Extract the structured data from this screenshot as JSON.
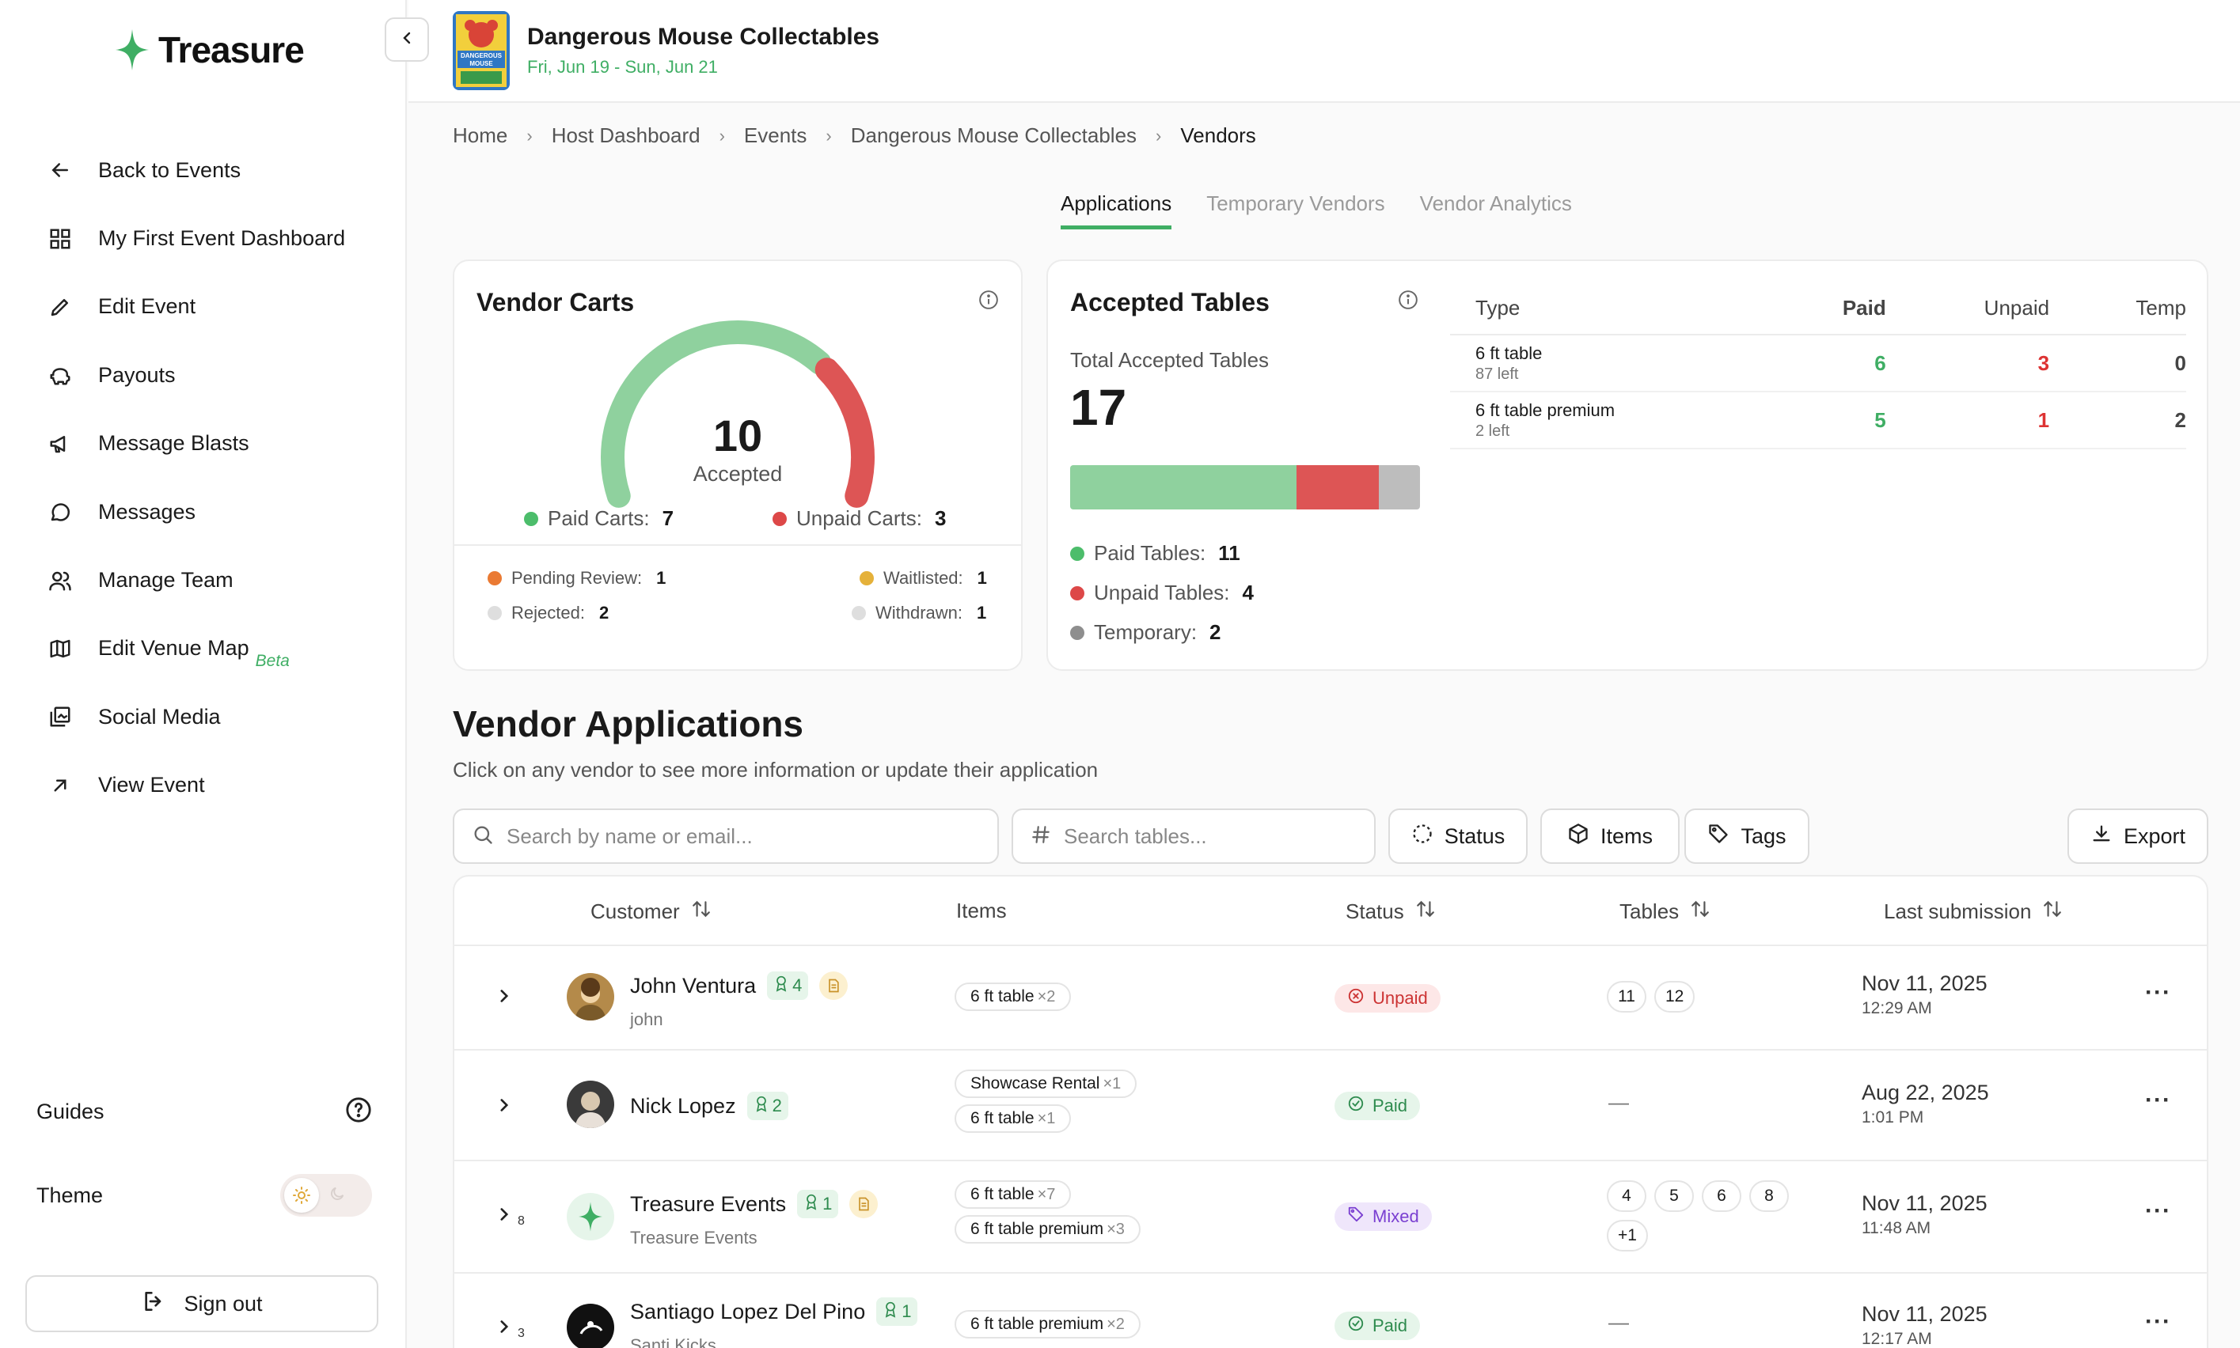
{
  "brand": {
    "name": "Treasure"
  },
  "sidebar": {
    "items": [
      {
        "label": "Back to Events",
        "icon": "arrow-left-icon"
      },
      {
        "label": "My First Event Dashboard",
        "icon": "grid-icon"
      },
      {
        "label": "Edit Event",
        "icon": "pencil-icon"
      },
      {
        "label": "Payouts",
        "icon": "piggy-bank-icon"
      },
      {
        "label": "Message Blasts",
        "icon": "megaphone-icon"
      },
      {
        "label": "Messages",
        "icon": "chat-bubble-icon"
      },
      {
        "label": "Manage Team",
        "icon": "users-icon"
      },
      {
        "label": "Edit Venue Map",
        "icon": "map-icon",
        "badge": "Beta"
      },
      {
        "label": "Social Media",
        "icon": "images-icon"
      },
      {
        "label": "View Event",
        "icon": "arrow-up-right-icon"
      }
    ],
    "guides": "Guides",
    "theme": "Theme",
    "sign_out": "Sign out"
  },
  "event": {
    "title": "Dangerous Mouse Collectables",
    "date": "Fri, Jun 19 - Sun, Jun 21",
    "poster_text": "DANGEROUS MOUSE"
  },
  "breadcrumb": [
    "Home",
    "Host Dashboard",
    "Events",
    "Dangerous Mouse Collectables",
    "Vendors"
  ],
  "tabs": [
    {
      "label": "Applications",
      "active": true
    },
    {
      "label": "Temporary Vendors",
      "active": false
    },
    {
      "label": "Vendor Analytics",
      "active": false
    }
  ],
  "vendor_carts": {
    "title": "Vendor Carts",
    "accepted": 10,
    "accepted_label": "Accepted",
    "paid_label": "Paid Carts:",
    "paid": 7,
    "unpaid_label": "Unpaid Carts:",
    "unpaid": 3,
    "pending_label": "Pending Review:",
    "pending": 1,
    "waitlisted_label": "Waitlisted:",
    "waitlisted": 1,
    "rejected_label": "Rejected:",
    "rejected": 2,
    "withdrawn_label": "Withdrawn:",
    "withdrawn": 1,
    "colors": {
      "paid": "#8fd19e",
      "unpaid": "#dd5555",
      "pending": "#ea7a33",
      "waitlisted": "#e5b13a",
      "rejected": "#dedede",
      "withdrawn": "#dedede"
    }
  },
  "accepted_tables": {
    "title": "Accepted Tables",
    "total_label": "Total Accepted Tables",
    "total": 17,
    "paid_label": "Paid Tables:",
    "paid": 11,
    "unpaid_label": "Unpaid Tables:",
    "unpaid": 4,
    "temp_label": "Temporary:",
    "temp": 2,
    "colors": {
      "paid": "#8fd19e",
      "unpaid": "#dd5555",
      "temp": "#bdbdbd"
    },
    "headers": {
      "type": "Type",
      "paid": "Paid",
      "unpaid": "Unpaid",
      "temp": "Temp"
    },
    "rows": [
      {
        "name": "6 ft table",
        "left": "87 left",
        "paid": "6",
        "unpaid": "3",
        "temp": "0"
      },
      {
        "name": "6 ft table premium",
        "left": "2 left",
        "paid": "5",
        "unpaid": "1",
        "temp": "2"
      }
    ]
  },
  "applications": {
    "title": "Vendor Applications",
    "subtitle": "Click on any vendor to see more information or update their application",
    "search_placeholder": "Search by name or email...",
    "tables_placeholder": "Search tables...",
    "filters": {
      "status": "Status",
      "items": "Items",
      "tags": "Tags",
      "export": "Export"
    },
    "columns": {
      "customer": "Customer",
      "items": "Items",
      "status": "Status",
      "tables": "Tables",
      "last": "Last submission"
    },
    "rows": [
      {
        "name": "John Ventura",
        "user": "john",
        "award": "4",
        "has_note": true,
        "count": "",
        "items": [
          {
            "name": "6 ft table",
            "qty": "×2"
          }
        ],
        "status": "Unpaid",
        "tables": [
          "11",
          "12"
        ],
        "date": "Nov 11, 2025",
        "time": "12:29 AM"
      },
      {
        "name": "Nick Lopez",
        "user": "",
        "award": "2",
        "has_note": false,
        "count": "",
        "items": [
          {
            "name": "Showcase Rental",
            "qty": "×1"
          },
          {
            "name": "6 ft table",
            "qty": "×1"
          }
        ],
        "status": "Paid",
        "tables": [],
        "dash": "—",
        "date": "Aug 22, 2025",
        "time": "1:01 PM"
      },
      {
        "name": "Treasure Events",
        "user": "Treasure Events",
        "award": "1",
        "has_note": true,
        "count": "8",
        "items": [
          {
            "name": "6 ft table",
            "qty": "×7"
          },
          {
            "name": "6 ft table premium",
            "qty": "×3"
          }
        ],
        "status": "Mixed",
        "tables": [
          "4",
          "5",
          "6",
          "8",
          "+1"
        ],
        "date": "Nov 11, 2025",
        "time": "11:48 AM"
      },
      {
        "name": "Santiago Lopez Del Pino",
        "user": "Santi Kicks",
        "award": "1",
        "has_note": false,
        "count": "3",
        "items": [
          {
            "name": "6 ft table premium",
            "qty": "×2"
          }
        ],
        "status": "Paid",
        "tables": [],
        "dash": "—",
        "date": "Nov 11, 2025",
        "time": "12:17 AM"
      }
    ]
  }
}
